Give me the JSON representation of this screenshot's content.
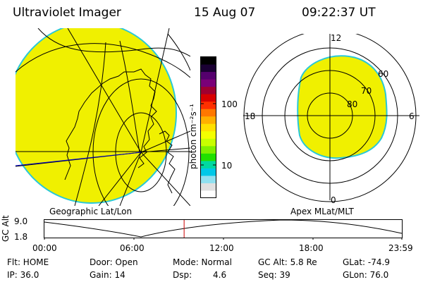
{
  "header": {
    "title": "Ultraviolet Imager",
    "date": "15 Aug 07",
    "time": "09:22:37 UT"
  },
  "colorbar": {
    "unit": "photon cm⁻²s⁻¹",
    "ticks": [
      "100",
      "10"
    ],
    "colors": [
      "#000000",
      "#1a0033",
      "#55006e",
      "#7a0078",
      "#a00030",
      "#d80000",
      "#ff3000",
      "#ff7800",
      "#ffb000",
      "#ffe000",
      "#f4ff00",
      "#c8ff00",
      "#80f000",
      "#20e000",
      "#00d8a0",
      "#00c8e8",
      "#90e0f0",
      "#e0e0e0",
      "#ffffff"
    ]
  },
  "geo_map": {
    "label": "Geographic Lat/Lon",
    "fill_color": "#f0f000",
    "edge_color": "#28c8d8"
  },
  "polar_map": {
    "label": "Apex MLat/MLT",
    "mlt_labels": {
      "top": "12",
      "left": "18",
      "right": "6",
      "bottom": "0"
    },
    "lat_labels": [
      "60",
      "70",
      "80"
    ]
  },
  "altitude_plot": {
    "ylabel": "GC Alt",
    "yticks": [
      "9.0",
      "1.8"
    ],
    "xticks": [
      "00:00",
      "06:00",
      "12:00",
      "18:00",
      "23:59"
    ],
    "current_time_hours": 9.38
  },
  "info": {
    "flt": "Flt: HOME",
    "door": "Door: Open",
    "mode": "Mode: Normal",
    "gc_alt": "GC Alt: 5.8 Re",
    "glat": "GLat: -74.9",
    "ip": "IP: 36.0",
    "gain": "Gain: 14",
    "dsp_label": "Dsp:",
    "dsp_value": "4.6",
    "seq": "Seq: 39",
    "glon": "GLon: 76.0"
  }
}
